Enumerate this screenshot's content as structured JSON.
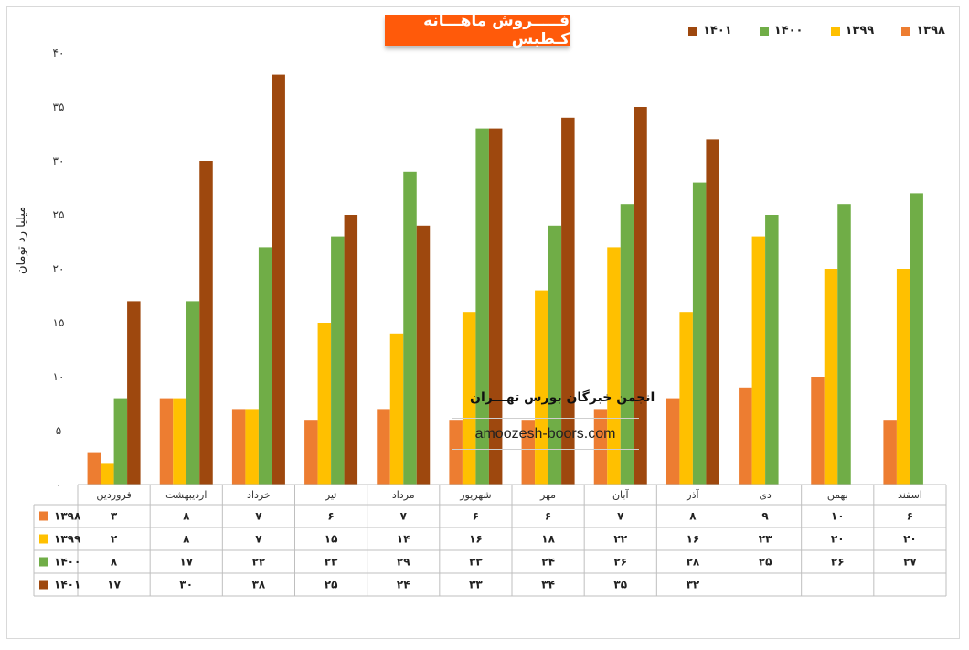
{
  "title": "فـــــروش ماهـــانه کـطبس",
  "ylabel": "میلیا رد تومان",
  "watermark": {
    "name": "انجمن خبرگان بورس تهـــران",
    "url": "amoozesh-boors.com"
  },
  "colors": {
    "1398": "#ed7d31",
    "1399": "#ffc000",
    "1400": "#70ad47",
    "1401": "#9e480e"
  },
  "chart_data": {
    "type": "bar",
    "categories": [
      "فروردین",
      "اردیبهشت",
      "خرداد",
      "تیر",
      "مرداد",
      "شهریور",
      "مهر",
      "آبان",
      "آذر",
      "دی",
      "بهمن",
      "اسفند"
    ],
    "series": [
      {
        "name": "۱۳۹۸",
        "values": [
          3,
          8,
          7,
          6,
          7,
          6,
          6,
          7,
          8,
          9,
          10,
          6
        ]
      },
      {
        "name": "۱۳۹۹",
        "values": [
          2,
          8,
          7,
          15,
          14,
          16,
          18,
          22,
          16,
          23,
          20,
          20
        ]
      },
      {
        "name": "۱۴۰۰",
        "values": [
          8,
          17,
          22,
          23,
          29,
          33,
          24,
          26,
          28,
          25,
          26,
          27
        ]
      },
      {
        "name": "۱۴۰۱",
        "values": [
          17,
          30,
          38,
          25,
          24,
          33,
          34,
          35,
          32,
          null,
          null,
          null
        ]
      }
    ],
    "y_ticks": [
      "۰",
      "۵",
      "۱۰",
      "۱۵",
      "۲۰",
      "۲۵",
      "۳۰",
      "۳۵",
      "۴۰"
    ],
    "ylim": [
      0,
      40
    ],
    "legend_position": "top-right",
    "grid": false,
    "data_table": {
      "rows": [
        {
          "label": "۱۳۹۸",
          "cells": [
            "۳",
            "۸",
            "۷",
            "۶",
            "۷",
            "۶",
            "۶",
            "۷",
            "۸",
            "۹",
            "۱۰",
            "۶"
          ]
        },
        {
          "label": "۱۳۹۹",
          "cells": [
            "۲",
            "۸",
            "۷",
            "۱۵",
            "۱۴",
            "۱۶",
            "۱۸",
            "۲۲",
            "۱۶",
            "۲۳",
            "۲۰",
            "۲۰"
          ]
        },
        {
          "label": "۱۴۰۰",
          "cells": [
            "۸",
            "۱۷",
            "۲۲",
            "۲۳",
            "۲۹",
            "۳۳",
            "۲۴",
            "۲۶",
            "۲۸",
            "۲۵",
            "۲۶",
            "۲۷"
          ]
        },
        {
          "label": "۱۴۰۱",
          "cells": [
            "۱۷",
            "۳۰",
            "۳۸",
            "۲۵",
            "۲۴",
            "۳۳",
            "۳۴",
            "۳۵",
            "۳۲",
            "",
            "",
            ""
          ]
        }
      ]
    }
  }
}
